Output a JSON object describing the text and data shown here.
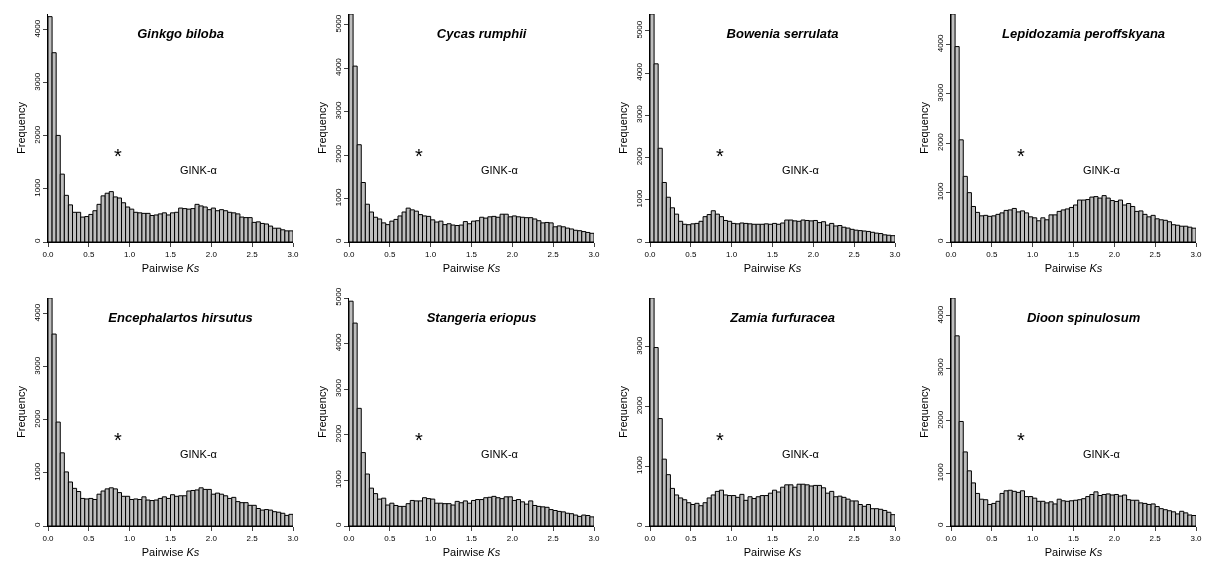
{
  "chart_data": [
    {
      "type": "histogram",
      "title": "Ginkgo biloba",
      "xlabel": "Pairwise Ks",
      "ylabel": "Frequency",
      "color": "#bebebe",
      "bins": [
        0,
        0.05,
        0.1,
        0.15,
        0.2,
        0.25,
        0.3,
        0.35,
        0.4,
        0.45,
        0.5,
        0.55,
        0.6,
        0.65,
        0.7,
        0.75,
        0.8,
        0.85,
        0.9,
        0.95,
        1,
        1.05,
        1.1,
        1.15,
        1.2,
        1.25,
        1.3,
        1.35,
        1.4,
        1.45,
        1.5,
        1.55,
        1.6,
        1.65,
        1.7,
        1.75,
        1.8,
        1.85,
        1.9,
        1.95,
        2,
        2.05,
        2.1,
        2.15,
        2.2,
        2.25,
        2.3,
        2.35,
        2.4,
        2.45,
        2.5,
        2.55,
        2.6,
        2.65,
        2.7,
        2.75,
        2.8,
        2.85,
        2.9,
        2.95,
        3
      ],
      "values": [
        4250,
        3570,
        2010,
        1280,
        880,
        700,
        560,
        560,
        470,
        480,
        520,
        590,
        710,
        870,
        920,
        950,
        850,
        830,
        740,
        660,
        620,
        560,
        550,
        540,
        540,
        500,
        510,
        530,
        550,
        510,
        550,
        560,
        640,
        630,
        620,
        630,
        710,
        680,
        660,
        610,
        640,
        590,
        610,
        590,
        560,
        550,
        530,
        470,
        460,
        460,
        370,
        380,
        350,
        340,
        300,
        260,
        260,
        230,
        210,
        210
      ],
      "xlim": [
        0,
        3
      ],
      "xticks": [
        {
          "value": 0,
          "label": "0.0"
        },
        {
          "value": 0.5,
          "label": "0.5"
        },
        {
          "value": 1,
          "label": "1.0"
        },
        {
          "value": 1.5,
          "label": "1.5"
        },
        {
          "value": 2,
          "label": "2.0"
        },
        {
          "value": 2.5,
          "label": "2.5"
        },
        {
          "value": 3,
          "label": "3.0"
        }
      ],
      "ylim": [
        0,
        4300
      ],
      "yticks": [
        0,
        1000,
        2000,
        3000,
        4000
      ],
      "annotations": [
        "*",
        "GINK-α"
      ]
    },
    {
      "type": "histogram",
      "title": "Cycas rumphii",
      "xlabel": "Pairwise Ks",
      "ylabel": "Frequency",
      "color": "#bebebe",
      "bins": [
        0,
        0.05,
        0.1,
        0.15,
        0.2,
        0.25,
        0.3,
        0.35,
        0.4,
        0.45,
        0.5,
        0.55,
        0.6,
        0.65,
        0.7,
        0.75,
        0.8,
        0.85,
        0.9,
        0.95,
        1,
        1.05,
        1.1,
        1.15,
        1.2,
        1.25,
        1.3,
        1.35,
        1.4,
        1.45,
        1.5,
        1.55,
        1.6,
        1.65,
        1.7,
        1.75,
        1.8,
        1.85,
        1.9,
        1.95,
        2,
        2.05,
        2.1,
        2.15,
        2.2,
        2.25,
        2.3,
        2.35,
        2.4,
        2.45,
        2.5,
        2.55,
        2.6,
        2.65,
        2.7,
        2.75,
        2.8,
        2.85,
        2.9,
        2.95,
        3
      ],
      "values": [
        5250,
        4050,
        2240,
        1370,
        870,
        690,
        570,
        530,
        440,
        400,
        480,
        520,
        600,
        690,
        780,
        740,
        710,
        630,
        600,
        590,
        510,
        460,
        480,
        400,
        420,
        390,
        380,
        390,
        470,
        420,
        480,
        490,
        570,
        550,
        580,
        590,
        570,
        640,
        640,
        580,
        600,
        580,
        570,
        560,
        560,
        530,
        490,
        440,
        450,
        440,
        350,
        370,
        350,
        320,
        300,
        270,
        260,
        240,
        220,
        200
      ],
      "xlim": [
        0,
        3
      ],
      "xticks": [
        {
          "value": 0,
          "label": "0.0"
        },
        {
          "value": 0.5,
          "label": "0.5"
        },
        {
          "value": 1,
          "label": "1.0"
        },
        {
          "value": 1.5,
          "label": "1.5"
        },
        {
          "value": 2,
          "label": "2.0"
        },
        {
          "value": 2.5,
          "label": "2.5"
        },
        {
          "value": 3,
          "label": "3.0"
        }
      ],
      "ylim": [
        0,
        5250
      ],
      "yticks": [
        0,
        1000,
        2000,
        3000,
        4000,
        5000
      ],
      "annotations": [
        "*",
        "GINK-α"
      ]
    },
    {
      "type": "histogram",
      "title": "Bowenia serrulata",
      "xlabel": "Pairwise Ks",
      "ylabel": "Frequency",
      "color": "#bebebe",
      "bins": [
        0,
        0.05,
        0.1,
        0.15,
        0.2,
        0.25,
        0.3,
        0.35,
        0.4,
        0.45,
        0.5,
        0.55,
        0.6,
        0.65,
        0.7,
        0.75,
        0.8,
        0.85,
        0.9,
        0.95,
        1,
        1.05,
        1.1,
        1.15,
        1.2,
        1.25,
        1.3,
        1.35,
        1.4,
        1.45,
        1.5,
        1.55,
        1.6,
        1.65,
        1.7,
        1.75,
        1.8,
        1.85,
        1.9,
        1.95,
        2,
        2.05,
        2.1,
        2.15,
        2.2,
        2.25,
        2.3,
        2.35,
        2.4,
        2.45,
        2.5,
        2.55,
        2.6,
        2.65,
        2.7,
        2.75,
        2.8,
        2.85,
        2.9,
        2.95,
        3
      ],
      "values": [
        5400,
        4220,
        2220,
        1410,
        1060,
        810,
        660,
        490,
        420,
        410,
        430,
        440,
        490,
        600,
        650,
        740,
        660,
        600,
        510,
        490,
        440,
        430,
        450,
        440,
        430,
        420,
        420,
        420,
        430,
        420,
        440,
        420,
        450,
        520,
        520,
        500,
        490,
        520,
        510,
        500,
        510,
        460,
        480,
        400,
        440,
        380,
        390,
        350,
        330,
        300,
        280,
        270,
        260,
        250,
        230,
        210,
        200,
        170,
        160,
        150
      ],
      "xlim": [
        0,
        3
      ],
      "xticks": [
        {
          "value": 0,
          "label": "0.0"
        },
        {
          "value": 0.5,
          "label": "0.5"
        },
        {
          "value": 1,
          "label": "1.0"
        },
        {
          "value": 1.5,
          "label": "1.5"
        },
        {
          "value": 2,
          "label": "2.0"
        },
        {
          "value": 2.5,
          "label": "2.5"
        },
        {
          "value": 3,
          "label": "3.0"
        }
      ],
      "ylim": [
        0,
        5400
      ],
      "yticks": [
        0,
        1000,
        2000,
        3000,
        4000,
        5000
      ],
      "annotations": [
        "*",
        "GINK-α"
      ]
    },
    {
      "type": "histogram",
      "title": "Lepidozamia peroffskyana",
      "xlabel": "Pairwise Ks",
      "ylabel": "Frequency",
      "color": "#bebebe",
      "bins": [
        0,
        0.05,
        0.1,
        0.15,
        0.2,
        0.25,
        0.3,
        0.35,
        0.4,
        0.45,
        0.5,
        0.55,
        0.6,
        0.65,
        0.7,
        0.75,
        0.8,
        0.85,
        0.9,
        0.95,
        1,
        1.05,
        1.1,
        1.15,
        1.2,
        1.25,
        1.3,
        1.35,
        1.4,
        1.45,
        1.5,
        1.55,
        1.6,
        1.65,
        1.7,
        1.75,
        1.8,
        1.85,
        1.9,
        1.95,
        2,
        2.05,
        2.1,
        2.15,
        2.2,
        2.25,
        2.3,
        2.35,
        2.4,
        2.45,
        2.5,
        2.55,
        2.6,
        2.65,
        2.7,
        2.75,
        2.8,
        2.85,
        2.9,
        2.95,
        3
      ],
      "values": [
        4620,
        3960,
        2070,
        1330,
        1000,
        720,
        600,
        530,
        540,
        520,
        530,
        560,
        590,
        640,
        650,
        680,
        610,
        630,
        590,
        510,
        490,
        430,
        490,
        450,
        550,
        550,
        620,
        650,
        670,
        700,
        750,
        850,
        850,
        860,
        910,
        920,
        890,
        940,
        890,
        840,
        820,
        850,
        750,
        780,
        720,
        620,
        630,
        560,
        510,
        540,
        470,
        450,
        440,
        410,
        350,
        340,
        320,
        320,
        300,
        280
      ],
      "xlim": [
        0,
        3
      ],
      "xticks": [
        {
          "value": 0,
          "label": "0.0"
        },
        {
          "value": 0.5,
          "label": "0.5"
        },
        {
          "value": 1,
          "label": "1.0"
        },
        {
          "value": 1.5,
          "label": "1.5"
        },
        {
          "value": 2,
          "label": "2.0"
        },
        {
          "value": 2.5,
          "label": "2.5"
        },
        {
          "value": 3,
          "label": "3.0"
        }
      ],
      "ylim": [
        0,
        4620
      ],
      "yticks": [
        0,
        1000,
        2000,
        3000,
        4000
      ],
      "annotations": [
        "*",
        "GINK-α"
      ]
    },
    {
      "type": "histogram",
      "title": "Encephalartos hirsutus",
      "xlabel": "Pairwise Ks",
      "ylabel": "Frequency",
      "color": "#bebebe",
      "bins": [
        0,
        0.05,
        0.1,
        0.15,
        0.2,
        0.25,
        0.3,
        0.35,
        0.4,
        0.45,
        0.5,
        0.55,
        0.6,
        0.65,
        0.7,
        0.75,
        0.8,
        0.85,
        0.9,
        0.95,
        1,
        1.05,
        1.1,
        1.15,
        1.2,
        1.25,
        1.3,
        1.35,
        1.4,
        1.45,
        1.5,
        1.55,
        1.6,
        1.65,
        1.7,
        1.75,
        1.8,
        1.85,
        1.9,
        1.95,
        2,
        2.05,
        2.1,
        2.15,
        2.2,
        2.25,
        2.3,
        2.35,
        2.4,
        2.45,
        2.5,
        2.55,
        2.6,
        2.65,
        2.7,
        2.75,
        2.8,
        2.85,
        2.9,
        2.95,
        3
      ],
      "values": [
        4300,
        3620,
        1960,
        1380,
        1020,
        830,
        710,
        650,
        520,
        510,
        520,
        500,
        600,
        660,
        700,
        720,
        700,
        630,
        560,
        560,
        500,
        510,
        500,
        550,
        490,
        480,
        490,
        520,
        550,
        520,
        590,
        560,
        570,
        570,
        660,
        670,
        680,
        720,
        690,
        690,
        600,
        620,
        600,
        570,
        520,
        540,
        460,
        440,
        440,
        390,
        390,
        330,
        300,
        310,
        300,
        270,
        260,
        240,
        200,
        220
      ],
      "xlim": [
        0,
        3
      ],
      "xticks": [
        {
          "value": 0,
          "label": "0.0"
        },
        {
          "value": 0.5,
          "label": "0.5"
        },
        {
          "value": 1,
          "label": "1.0"
        },
        {
          "value": 1.5,
          "label": "1.5"
        },
        {
          "value": 2,
          "label": "2.0"
        },
        {
          "value": 2.5,
          "label": "2.5"
        },
        {
          "value": 3,
          "label": "3.0"
        }
      ],
      "ylim": [
        0,
        4300
      ],
      "yticks": [
        0,
        1000,
        2000,
        3000,
        4000
      ],
      "annotations": [
        "*",
        "GINK-α"
      ]
    },
    {
      "type": "histogram",
      "title": "Stangeria eriopus",
      "xlabel": "Pairwise Ks",
      "ylabel": "Frequency",
      "color": "#bebebe",
      "bins": [
        0,
        0.05,
        0.1,
        0.15,
        0.2,
        0.25,
        0.3,
        0.35,
        0.4,
        0.45,
        0.5,
        0.55,
        0.6,
        0.65,
        0.7,
        0.75,
        0.8,
        0.85,
        0.9,
        0.95,
        1,
        1.05,
        1.1,
        1.15,
        1.2,
        1.25,
        1.3,
        1.35,
        1.4,
        1.45,
        1.5,
        1.55,
        1.6,
        1.65,
        1.7,
        1.75,
        1.8,
        1.85,
        1.9,
        1.95,
        2,
        2.05,
        2.1,
        2.15,
        2.2,
        2.25,
        2.3,
        2.35,
        2.4,
        2.45,
        2.5,
        2.55,
        2.6,
        2.65,
        2.7,
        2.75,
        2.8,
        2.85,
        2.9,
        2.95,
        3
      ],
      "values": [
        4930,
        4450,
        2580,
        1610,
        1140,
        830,
        710,
        590,
        610,
        460,
        500,
        450,
        430,
        430,
        490,
        560,
        550,
        550,
        620,
        600,
        590,
        500,
        500,
        490,
        490,
        460,
        540,
        510,
        550,
        500,
        560,
        580,
        580,
        620,
        630,
        650,
        620,
        600,
        640,
        640,
        560,
        580,
        530,
        480,
        550,
        450,
        430,
        420,
        410,
        360,
        340,
        320,
        310,
        280,
        270,
        240,
        210,
        240,
        230,
        200
      ],
      "xlim": [
        0,
        3
      ],
      "xticks": [
        {
          "value": 0,
          "label": "0.0"
        },
        {
          "value": 0.5,
          "label": "0.5"
        },
        {
          "value": 1,
          "label": "1.0"
        },
        {
          "value": 1.5,
          "label": "1.5"
        },
        {
          "value": 2,
          "label": "2.0"
        },
        {
          "value": 2.5,
          "label": "2.5"
        },
        {
          "value": 3,
          "label": "3.0"
        }
      ],
      "ylim": [
        0,
        5000
      ],
      "yticks": [
        0,
        1000,
        2000,
        3000,
        4000,
        5000
      ],
      "annotations": [
        "*",
        "GINK-α"
      ]
    },
    {
      "type": "histogram",
      "title": "Zamia furfuracea",
      "xlabel": "Pairwise Ks",
      "ylabel": "Frequency",
      "color": "#bebebe",
      "bins": [
        0,
        0.05,
        0.1,
        0.15,
        0.2,
        0.25,
        0.3,
        0.35,
        0.4,
        0.45,
        0.5,
        0.55,
        0.6,
        0.65,
        0.7,
        0.75,
        0.8,
        0.85,
        0.9,
        0.95,
        1,
        1.05,
        1.1,
        1.15,
        1.2,
        1.25,
        1.3,
        1.35,
        1.4,
        1.45,
        1.5,
        1.55,
        1.6,
        1.65,
        1.7,
        1.75,
        1.8,
        1.85,
        1.9,
        1.95,
        2,
        2.05,
        2.1,
        2.15,
        2.2,
        2.25,
        2.3,
        2.35,
        2.4,
        2.45,
        2.5,
        2.55,
        2.6,
        2.65,
        2.7,
        2.75,
        2.8,
        2.85,
        2.9,
        2.95,
        3
      ],
      "values": [
        3820,
        2990,
        1800,
        1120,
        860,
        630,
        520,
        470,
        440,
        390,
        360,
        380,
        340,
        390,
        470,
        520,
        580,
        600,
        520,
        510,
        510,
        480,
        530,
        430,
        490,
        460,
        490,
        510,
        510,
        550,
        600,
        570,
        650,
        690,
        690,
        650,
        700,
        700,
        690,
        670,
        680,
        680,
        640,
        550,
        580,
        490,
        500,
        480,
        450,
        420,
        420,
        360,
        330,
        360,
        290,
        290,
        280,
        260,
        230,
        190
      ],
      "xlim": [
        0,
        3
      ],
      "xticks": [
        {
          "value": 0,
          "label": "0.0"
        },
        {
          "value": 0.5,
          "label": "0.5"
        },
        {
          "value": 1,
          "label": "1.0"
        },
        {
          "value": 1.5,
          "label": "1.5"
        },
        {
          "value": 2,
          "label": "2.0"
        },
        {
          "value": 2.5,
          "label": "2.5"
        },
        {
          "value": 3,
          "label": "3.0"
        }
      ],
      "ylim": [
        0,
        3820
      ],
      "yticks": [
        0,
        1000,
        2000,
        3000
      ],
      "annotations": [
        "*",
        "GINK-α"
      ]
    },
    {
      "type": "histogram",
      "title": "Dioon spinulosum",
      "xlabel": "Pairwise Ks",
      "ylabel": "Frequency",
      "color": "#bebebe",
      "bins": [
        0,
        0.05,
        0.1,
        0.15,
        0.2,
        0.25,
        0.3,
        0.35,
        0.4,
        0.45,
        0.5,
        0.55,
        0.6,
        0.65,
        0.7,
        0.75,
        0.8,
        0.85,
        0.9,
        0.95,
        1,
        1.05,
        1.1,
        1.15,
        1.2,
        1.25,
        1.3,
        1.35,
        1.4,
        1.45,
        1.5,
        1.55,
        1.6,
        1.65,
        1.7,
        1.75,
        1.8,
        1.85,
        1.9,
        1.95,
        2,
        2.05,
        2.1,
        2.15,
        2.2,
        2.25,
        2.3,
        2.35,
        2.4,
        2.45,
        2.5,
        2.55,
        2.6,
        2.65,
        2.7,
        2.75,
        2.8,
        2.85,
        2.9,
        2.95,
        3
      ],
      "values": [
        4340,
        3620,
        1990,
        1410,
        1050,
        820,
        620,
        510,
        500,
        410,
        430,
        470,
        620,
        670,
        680,
        660,
        640,
        670,
        560,
        560,
        530,
        470,
        470,
        440,
        460,
        420,
        510,
        480,
        470,
        480,
        490,
        500,
        520,
        560,
        600,
        650,
        580,
        600,
        610,
        590,
        600,
        570,
        590,
        500,
        490,
        490,
        440,
        430,
        410,
        420,
        370,
        330,
        310,
        290,
        270,
        230,
        280,
        250,
        210,
        200
      ],
      "xlim": [
        0,
        3
      ],
      "xticks": [
        {
          "value": 0,
          "label": "0.0"
        },
        {
          "value": 0.5,
          "label": "0.5"
        },
        {
          "value": 1,
          "label": "1.0"
        },
        {
          "value": 1.5,
          "label": "1.5"
        },
        {
          "value": 2,
          "label": "2.0"
        },
        {
          "value": 2.5,
          "label": "2.5"
        },
        {
          "value": 3,
          "label": "3.0"
        }
      ],
      "ylim": [
        0,
        4340
      ],
      "yticks": [
        0,
        1000,
        2000,
        3000,
        4000
      ],
      "annotations": [
        "*",
        "GINK-α"
      ]
    }
  ]
}
